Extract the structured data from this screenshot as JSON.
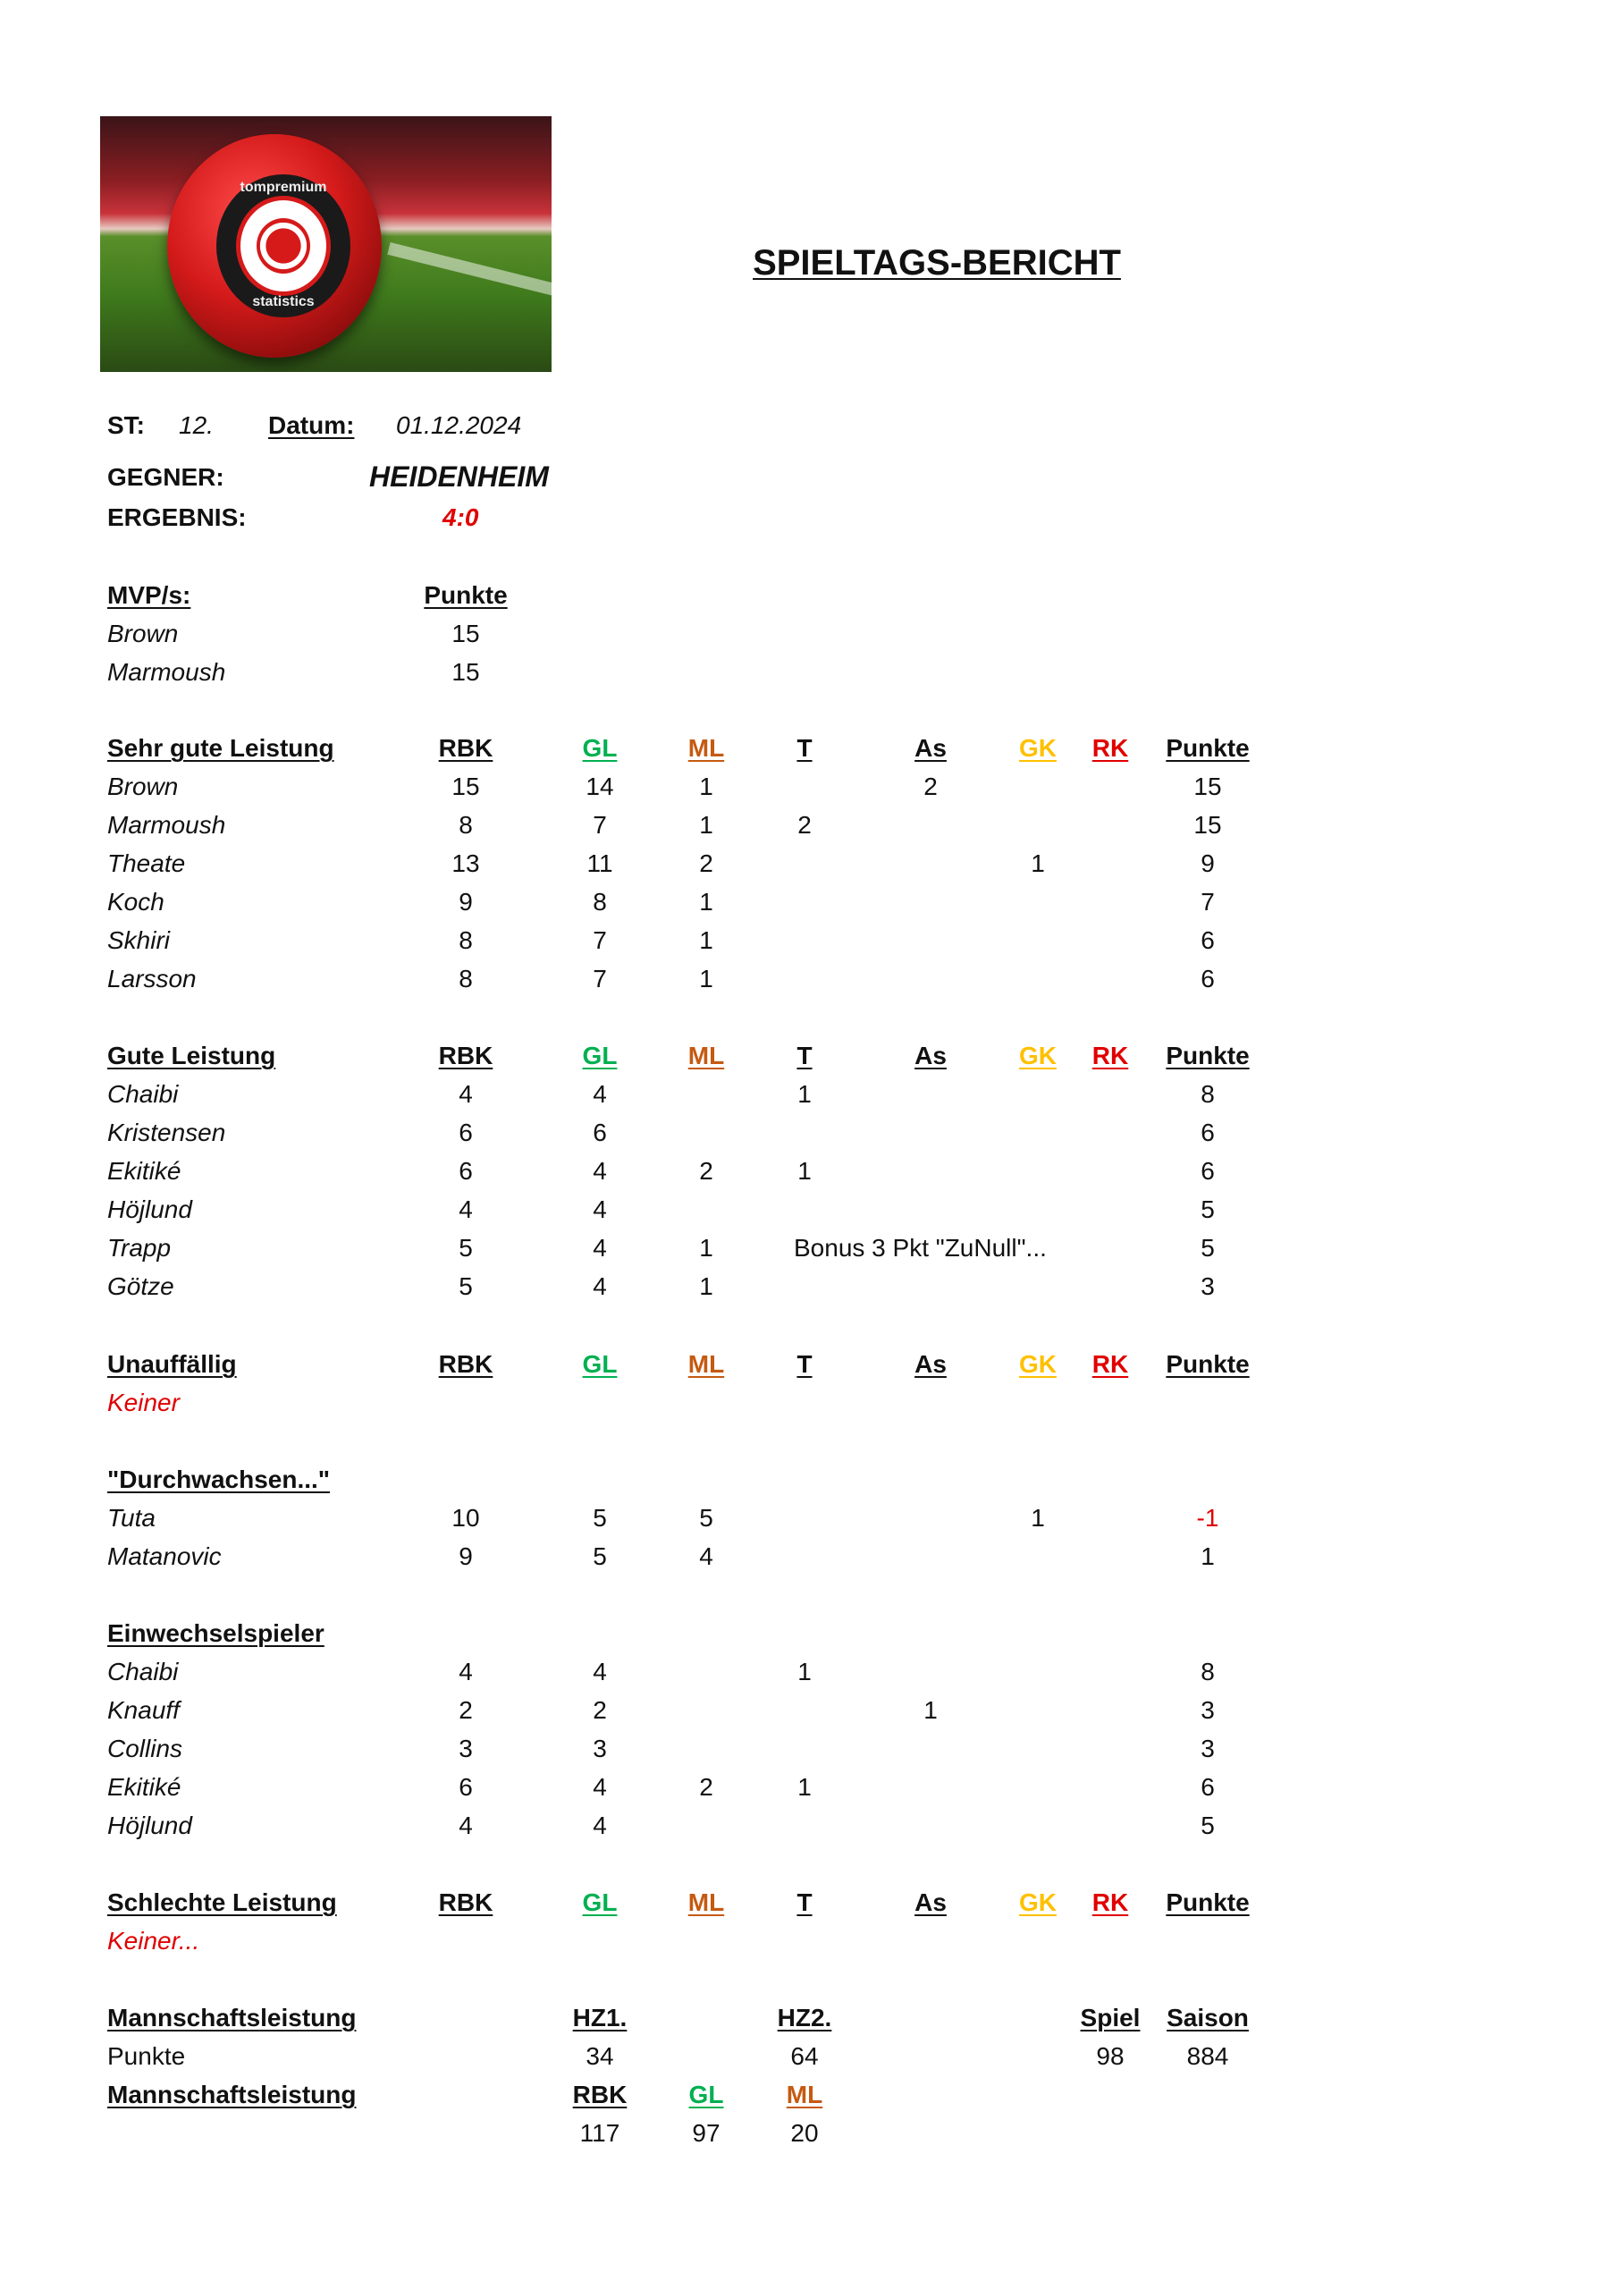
{
  "header": {
    "title": "SPIELTAGS-BERICHT",
    "logo_text": [
      "tompremium",
      "statistics"
    ],
    "st_label": "ST:",
    "st_value": "12.",
    "date_label": "Datum:",
    "date_value": "01.12.2024",
    "opponent_label": "GEGNER:",
    "opponent_value": "HEIDENHEIM",
    "result_label": "ERGEBNIS:",
    "result_value": "4:0"
  },
  "colors": {
    "GL": "#00b050",
    "ML": "#c55a11",
    "GK": "#ffc000",
    "RK": "#e00000",
    "red_text": "#e00000"
  },
  "columns": [
    "RBK",
    "GL",
    "ML",
    "T",
    "As",
    "GK",
    "RK",
    "Punkte"
  ],
  "mvp": {
    "title": "MVP/s:",
    "points_label": "Punkte",
    "rows": [
      {
        "name": "Brown",
        "points": "15"
      },
      {
        "name": "Marmoush",
        "points": "15"
      }
    ]
  },
  "sections": [
    {
      "title": "Sehr gute Leistung",
      "show_columns": true,
      "rows": [
        {
          "name": "Brown",
          "RBK": "15",
          "GL": "14",
          "ML": "1",
          "T": "",
          "As": "2",
          "GK": "",
          "RK": "",
          "Punkte": "15"
        },
        {
          "name": "Marmoush",
          "RBK": "8",
          "GL": "7",
          "ML": "1",
          "T": "2",
          "As": "",
          "GK": "",
          "RK": "",
          "Punkte": "15"
        },
        {
          "name": "Theate",
          "RBK": "13",
          "GL": "11",
          "ML": "2",
          "T": "",
          "As": "",
          "GK": "1",
          "RK": "",
          "Punkte": "9"
        },
        {
          "name": "Koch",
          "RBK": "9",
          "GL": "8",
          "ML": "1",
          "T": "",
          "As": "",
          "GK": "",
          "RK": "",
          "Punkte": "7"
        },
        {
          "name": "Skhiri",
          "RBK": "8",
          "GL": "7",
          "ML": "1",
          "T": "",
          "As": "",
          "GK": "",
          "RK": "",
          "Punkte": "6"
        },
        {
          "name": "Larsson",
          "RBK": "8",
          "GL": "7",
          "ML": "1",
          "T": "",
          "As": "",
          "GK": "",
          "RK": "",
          "Punkte": "6"
        }
      ]
    },
    {
      "title": "Gute Leistung",
      "show_columns": true,
      "rows": [
        {
          "name": "Chaibi",
          "RBK": "4",
          "GL": "4",
          "ML": "",
          "T": "1",
          "As": "",
          "GK": "",
          "RK": "",
          "Punkte": "8"
        },
        {
          "name": "Kristensen",
          "RBK": "6",
          "GL": "6",
          "ML": "",
          "T": "",
          "As": "",
          "GK": "",
          "RK": "",
          "Punkte": "6"
        },
        {
          "name": "Ekitiké",
          "RBK": "6",
          "GL": "4",
          "ML": "2",
          "T": "1",
          "As": "",
          "GK": "",
          "RK": "",
          "Punkte": "6"
        },
        {
          "name": "Höjlund",
          "RBK": "4",
          "GL": "4",
          "ML": "",
          "T": "",
          "As": "",
          "GK": "",
          "RK": "",
          "Punkte": "5"
        },
        {
          "name": "Trapp",
          "RBK": "5",
          "GL": "4",
          "ML": "1",
          "note": "Bonus 3 Pkt \"ZuNull\"...",
          "T": "",
          "As": "",
          "GK": "",
          "RK": "",
          "Punkte": "5"
        },
        {
          "name": "Götze",
          "RBK": "5",
          "GL": "4",
          "ML": "1",
          "T": "",
          "As": "",
          "GK": "",
          "RK": "",
          "Punkte": "3"
        }
      ]
    },
    {
      "title": "Unauffällig",
      "show_columns": true,
      "empty_text": "Keiner",
      "rows": []
    },
    {
      "title": "\"Durchwachsen...\"",
      "show_columns": false,
      "rows": [
        {
          "name": "Tuta",
          "RBK": "10",
          "GL": "5",
          "ML": "5",
          "T": "",
          "As": "",
          "GK": "1",
          "RK": "",
          "Punkte": "-1",
          "negative": true
        },
        {
          "name": "Matanovic",
          "RBK": "9",
          "GL": "5",
          "ML": "4",
          "T": "",
          "As": "",
          "GK": "",
          "RK": "",
          "Punkte": "1"
        }
      ]
    },
    {
      "title": "Einwechselspieler",
      "show_columns": false,
      "rows": [
        {
          "name": "Chaibi",
          "RBK": "4",
          "GL": "4",
          "ML": "",
          "T": "1",
          "As": "",
          "GK": "",
          "RK": "",
          "Punkte": "8"
        },
        {
          "name": "Knauff",
          "RBK": "2",
          "GL": "2",
          "ML": "",
          "T": "",
          "As": "1",
          "GK": "",
          "RK": "",
          "Punkte": "3"
        },
        {
          "name": "Collins",
          "RBK": "3",
          "GL": "3",
          "ML": "",
          "T": "",
          "As": "",
          "GK": "",
          "RK": "",
          "Punkte": "3"
        },
        {
          "name": "Ekitiké",
          "RBK": "6",
          "GL": "4",
          "ML": "2",
          "T": "1",
          "As": "",
          "GK": "",
          "RK": "",
          "Punkte": "6"
        },
        {
          "name": "Höjlund",
          "RBK": "4",
          "GL": "4",
          "ML": "",
          "T": "",
          "As": "",
          "GK": "",
          "RK": "",
          "Punkte": "5"
        }
      ]
    },
    {
      "title": "Schlechte Leistung",
      "show_columns": true,
      "empty_text": "Keiner...",
      "rows": []
    }
  ],
  "team": {
    "title": "Mannschaftsleistung",
    "hz1_label": "HZ1.",
    "hz2_label": "HZ2.",
    "game_label": "Spiel",
    "season_label": "Saison",
    "points_label": "Punkte",
    "hz1": "34",
    "hz2": "64",
    "game": "98",
    "season": "884",
    "title2": "Mannschaftsleistung",
    "rbk_label": "RBK",
    "gl_label": "GL",
    "ml_label": "ML",
    "rbk": "117",
    "gl": "97",
    "ml": "20"
  }
}
